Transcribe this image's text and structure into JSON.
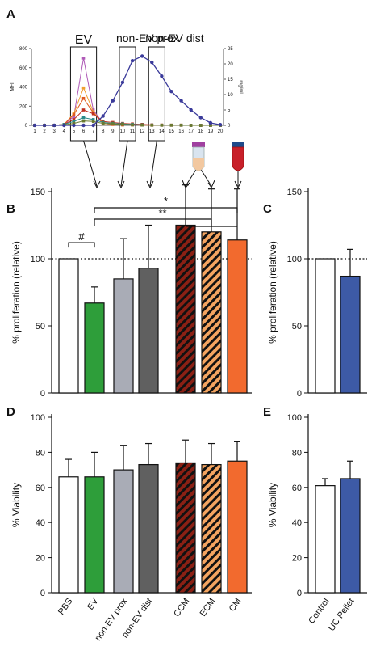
{
  "panel_labels": {
    "a": "A",
    "b": "B",
    "c": "C",
    "d": "D",
    "e": "E"
  },
  "colors": {
    "pbs": "#ffffff",
    "ev": "#2e9e3a",
    "prox": "#a9acb6",
    "dist": "#606060",
    "ccm": "#8b2014",
    "ecm": "#f4a460",
    "cm": "#f26a2e",
    "uc": "#3d5aa6",
    "hatch": "#111111",
    "a_mfi": [
      "#b05bb8",
      "#f0a030",
      "#e05a20",
      "#c03020",
      "#2a8a8a",
      "#6a7a30"
    ],
    "a_conc": "#3a3a9a"
  },
  "chart_data": [
    {
      "id": "A",
      "type": "line",
      "x": [
        1,
        2,
        3,
        4,
        5,
        6,
        7,
        8,
        9,
        10,
        11,
        12,
        13,
        14,
        15,
        16,
        17,
        18,
        19,
        20
      ],
      "xticks": [
        "1",
        "2",
        "3",
        "4",
        "5",
        "6",
        "7",
        "8",
        "9",
        "10",
        "11",
        "12",
        "13",
        "14",
        "15",
        "16",
        "17",
        "18",
        "19",
        "20"
      ],
      "ylabel": "MFI",
      "ylim": [
        0,
        800
      ],
      "yticks": [
        "0",
        "200",
        "400",
        "600",
        "800"
      ],
      "y2label": "mg/ml",
      "y2lim": [
        0,
        25
      ],
      "y2ticks": [
        "0",
        "5",
        "10",
        "15",
        "20",
        "25"
      ],
      "regions": [
        {
          "label": "EV",
          "from": 5,
          "to": 7
        },
        {
          "label": "non-EV prox",
          "from": 10,
          "to": 11
        },
        {
          "label": "non-EV dist",
          "from": 13,
          "to": 14
        }
      ],
      "series": [
        {
          "axis": "left",
          "values": [
            0,
            0,
            0,
            10,
            90,
            700,
            160,
            20,
            10,
            5,
            5,
            3,
            2,
            2,
            2,
            2,
            0,
            0,
            0,
            0
          ]
        },
        {
          "axis": "left",
          "values": [
            0,
            0,
            0,
            10,
            120,
            390,
            140,
            20,
            10,
            5,
            5,
            3,
            2,
            2,
            2,
            2,
            0,
            0,
            0,
            0
          ]
        },
        {
          "axis": "left",
          "values": [
            0,
            0,
            0,
            10,
            110,
            280,
            130,
            20,
            10,
            5,
            5,
            3,
            2,
            2,
            2,
            2,
            0,
            0,
            0,
            0
          ]
        },
        {
          "axis": "left",
          "values": [
            0,
            0,
            0,
            10,
            60,
            160,
            120,
            40,
            30,
            20,
            15,
            10,
            5,
            3,
            2,
            2,
            0,
            0,
            0,
            0
          ]
        },
        {
          "axis": "left",
          "values": [
            0,
            0,
            0,
            10,
            40,
            80,
            60,
            30,
            20,
            15,
            10,
            5,
            3,
            2,
            2,
            2,
            0,
            0,
            0,
            0
          ]
        },
        {
          "axis": "left",
          "values": [
            0,
            0,
            0,
            5,
            20,
            45,
            40,
            20,
            15,
            10,
            5,
            3,
            2,
            2,
            2,
            2,
            0,
            0,
            0,
            0
          ]
        },
        {
          "axis": "right",
          "values": [
            0,
            0,
            0,
            0,
            0,
            0,
            0,
            3,
            8,
            14,
            21,
            22.5,
            20.5,
            16,
            11,
            8,
            5,
            2.5,
            0.8,
            0.2
          ]
        }
      ]
    },
    {
      "id": "B",
      "type": "bar",
      "categories": [
        "PBS",
        "EV",
        "non-EV prox",
        "non-EV dist",
        "CCM",
        "ECM",
        "CM"
      ],
      "values": [
        100,
        67,
        85,
        93,
        125,
        120,
        114
      ],
      "errors": [
        0,
        12,
        30,
        32,
        30,
        32,
        38
      ],
      "ylabel": "% proliferation (relative)",
      "ylim": [
        0,
        150
      ],
      "yticks": [
        "0",
        "50",
        "100",
        "150"
      ],
      "reference_line": 100,
      "significance": [
        {
          "label": "#",
          "from": "PBS",
          "to": "EV"
        },
        {
          "label": "**",
          "from": "EV",
          "to_group": [
            "CCM",
            "ECM",
            "CM"
          ]
        },
        {
          "label": "*",
          "from": "EV",
          "to": "CM"
        }
      ]
    },
    {
      "id": "C",
      "type": "bar",
      "categories": [
        "Control",
        "UC Pellet"
      ],
      "values": [
        100,
        87
      ],
      "errors": [
        0,
        20
      ],
      "ylabel": "% proliferation (relative)",
      "ylim": [
        0,
        150
      ],
      "yticks": [
        "0",
        "50",
        "100",
        "150"
      ],
      "reference_line": 100
    },
    {
      "id": "D",
      "type": "bar",
      "categories": [
        "PBS",
        "EV",
        "non-EV prox",
        "non-EV dist",
        "CCM",
        "ECM",
        "CM"
      ],
      "values": [
        66,
        66,
        70,
        73,
        74,
        73,
        75
      ],
      "errors": [
        10,
        14,
        14,
        12,
        13,
        12,
        11
      ],
      "ylabel": "% Viability",
      "ylim": [
        0,
        100
      ],
      "yticks": [
        "0",
        "20",
        "40",
        "60",
        "80",
        "100"
      ]
    },
    {
      "id": "E",
      "type": "bar",
      "categories": [
        "Control",
        "UC Pellet"
      ],
      "values": [
        61,
        65
      ],
      "errors": [
        4,
        10
      ],
      "ylabel": "% Viability",
      "ylim": [
        0,
        100
      ],
      "yticks": [
        "0",
        "20",
        "40",
        "60",
        "80",
        "100"
      ]
    }
  ]
}
